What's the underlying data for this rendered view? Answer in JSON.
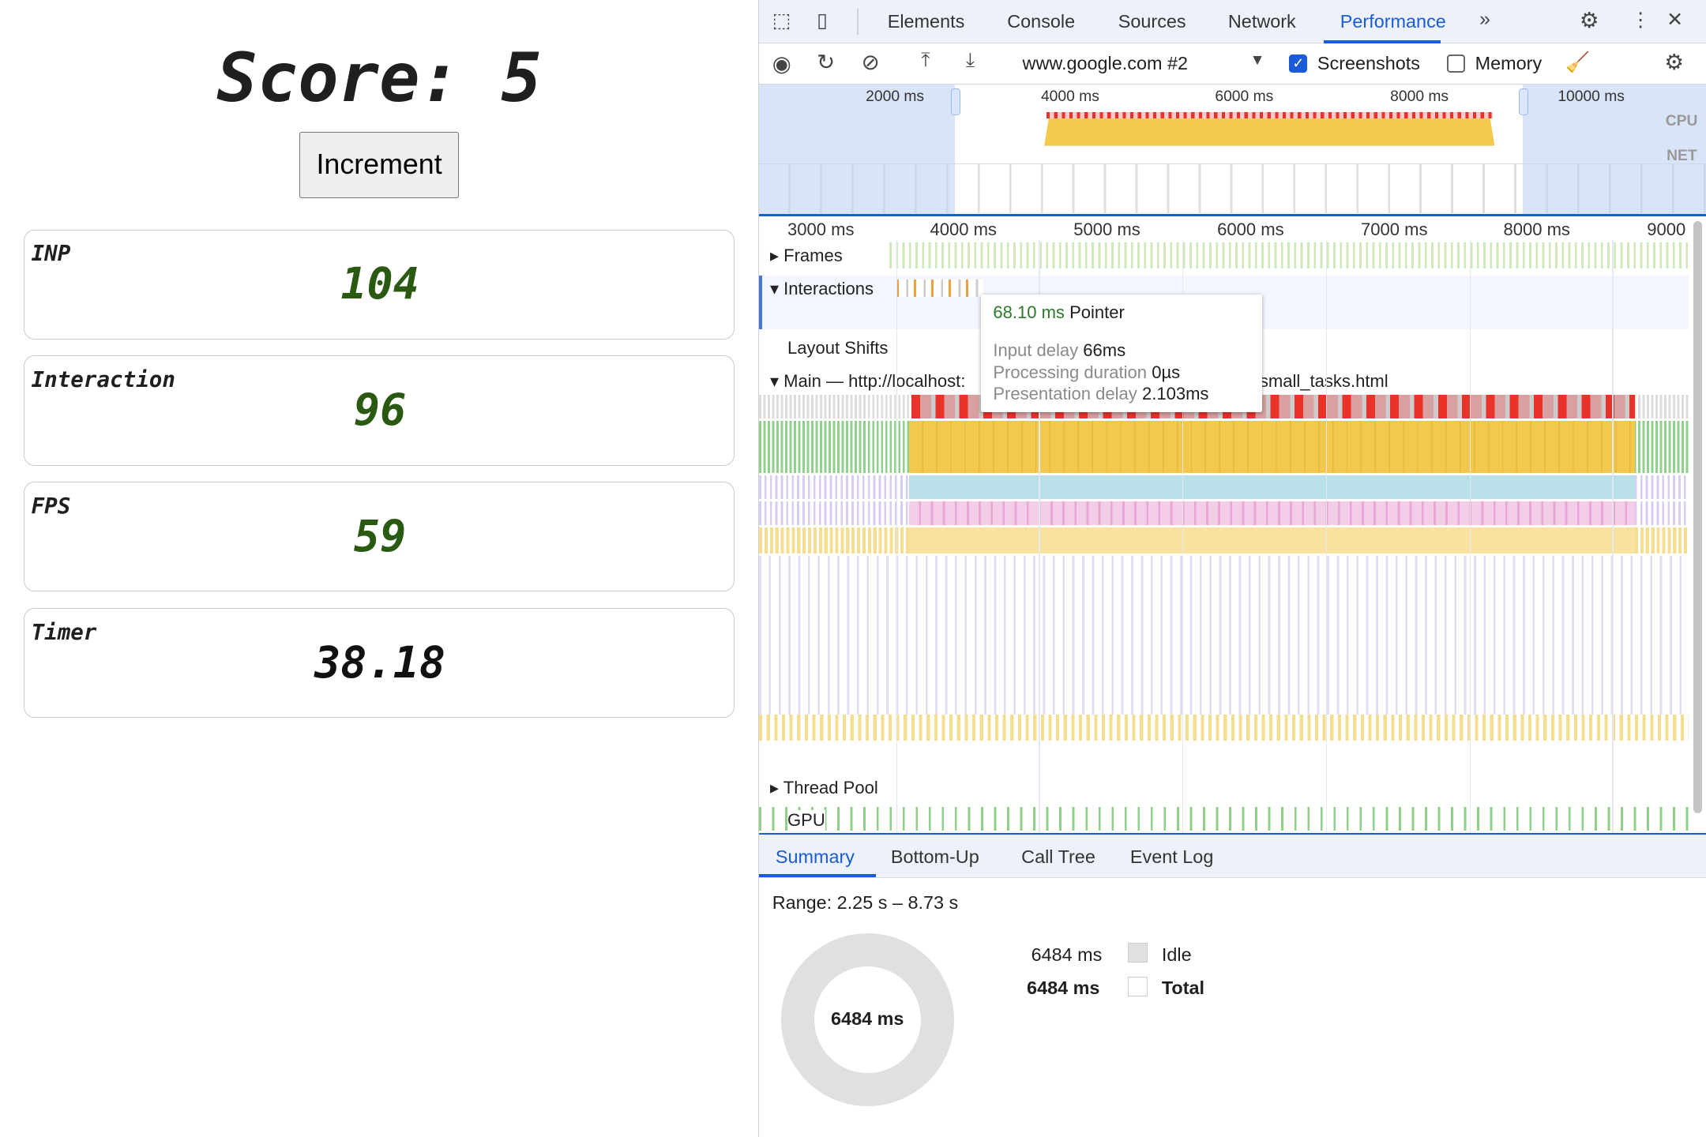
{
  "page": {
    "score_label": "Score: 5",
    "increment_button": "Increment",
    "metrics": [
      {
        "label": "INP",
        "value": "104"
      },
      {
        "label": "Interaction",
        "value": "96"
      },
      {
        "label": "FPS",
        "value": "59"
      },
      {
        "label": "Timer",
        "value": "38.18"
      }
    ]
  },
  "devtools": {
    "tabs": [
      "Elements",
      "Console",
      "Sources",
      "Network",
      "Performance"
    ],
    "active_tab": "Performance",
    "toolbar": {
      "target": "www.google.com #2",
      "screenshots_label": "Screenshots",
      "screenshots_checked": true,
      "memory_label": "Memory",
      "memory_checked": false
    },
    "overview_ticks": [
      "2000 ms",
      "4000 ms",
      "6000 ms",
      "8000 ms",
      "10000 ms"
    ],
    "overview_labels": {
      "cpu": "CPU",
      "net": "NET"
    },
    "timeline_ticks": [
      "3000 ms",
      "4000 ms",
      "5000 ms",
      "6000 ms",
      "7000 ms",
      "8000 ms",
      "9000"
    ],
    "tracks": {
      "frames": "Frames",
      "interactions": "Interactions",
      "layout_shifts": "Layout Shifts",
      "main_prefix": "Main — http://localhost:",
      "main_suffix": "small_tasks.html",
      "thread_pool": "Thread Pool",
      "gpu": "GPU"
    },
    "tooltip": {
      "duration": "68.10 ms",
      "type": "Pointer",
      "input_delay_label": "Input delay",
      "input_delay": "66ms",
      "processing_label": "Processing duration",
      "processing": "0µs",
      "presentation_label": "Presentation delay",
      "presentation": "2.103ms"
    },
    "bottom_tabs": [
      "Summary",
      "Bottom-Up",
      "Call Tree",
      "Event Log"
    ],
    "summary": {
      "range": "Range: 2.25 s – 8.73 s",
      "donut_label": "6484 ms",
      "rows": [
        {
          "value": "6484 ms",
          "label": "Idle"
        },
        {
          "value": "6484 ms",
          "label": "Total"
        }
      ]
    },
    "colors": {
      "accent": "#1a5bd8",
      "scripting": "#f2c94c",
      "long_task": "#e8322a",
      "idle": "#e0e0e0"
    }
  }
}
